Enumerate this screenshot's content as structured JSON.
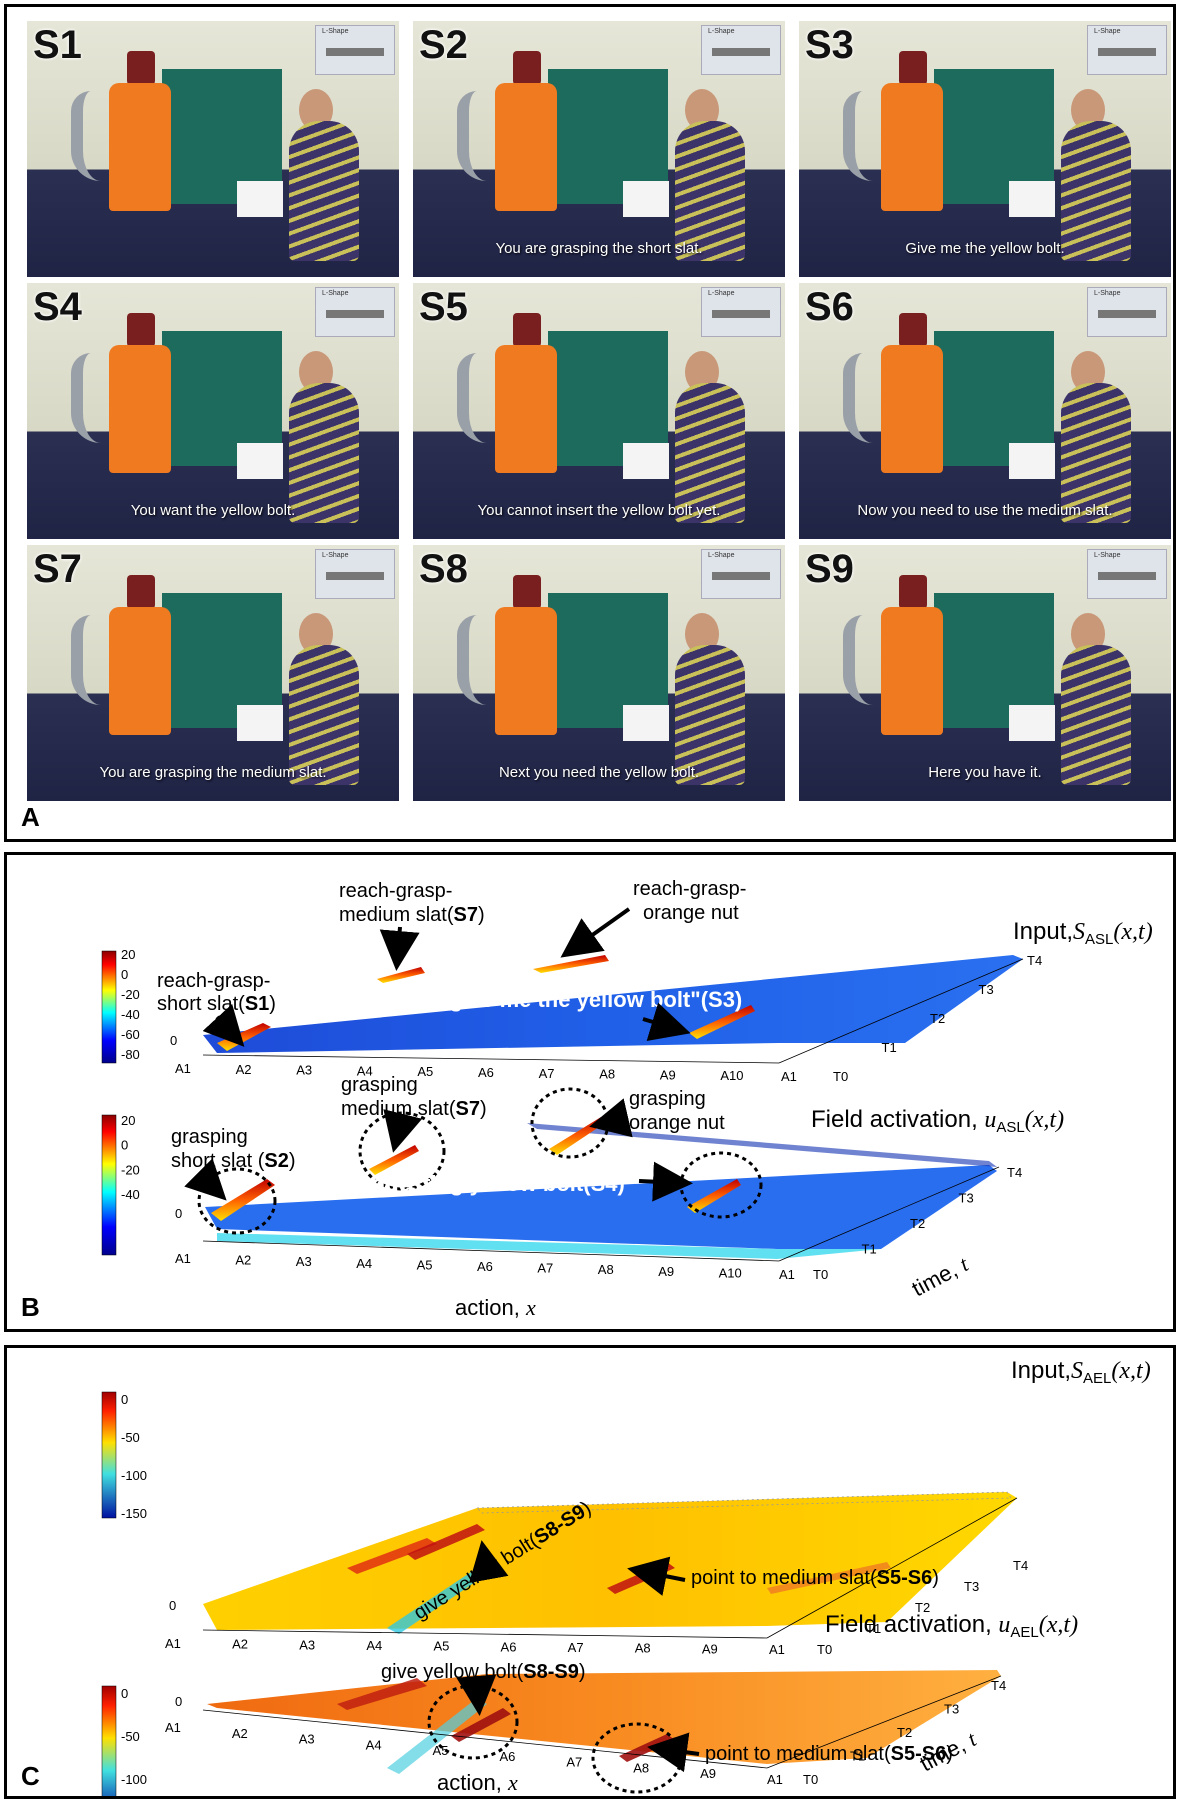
{
  "panel_a": {
    "letter": "A",
    "thumb_title": "L-Shape",
    "frames": [
      {
        "label": "S1",
        "caption": ""
      },
      {
        "label": "S2",
        "caption": "You are grasping the short slat."
      },
      {
        "label": "S3",
        "caption": "Give me the yellow bolt."
      },
      {
        "label": "S4",
        "caption": "You want the yellow bolt."
      },
      {
        "label": "S5",
        "caption": "You cannot insert the yellow bolt yet."
      },
      {
        "label": "S6",
        "caption": "Now you need to use the medium slat."
      },
      {
        "label": "S7",
        "caption": "You are grasping the medium slat."
      },
      {
        "label": "S8",
        "caption": "Next you need the yellow bolt."
      },
      {
        "label": "S9",
        "caption": "Here you have it."
      }
    ]
  },
  "panel_b": {
    "letter": "B",
    "top": {
      "title_prefix": "Input,",
      "title_sym": "S",
      "title_sub": "ASL",
      "title_args": "(x,t)",
      "colorbar_ticks": [
        "20",
        "0",
        "-20",
        "-40",
        "-60",
        "-80"
      ],
      "zero_label": "0",
      "x_ticks": [
        "A1",
        "A2",
        "A3",
        "A4",
        "A5",
        "A6",
        "A7",
        "A8",
        "A9",
        "A10",
        "A1"
      ],
      "t_ticks": [
        "T0",
        "T1",
        "T2",
        "T3",
        "T4"
      ],
      "ann1_l1": "reach-grasp-",
      "ann1_l2": "short slat(",
      "ann1_b": "S1",
      "ann1_end": ")",
      "ann2_l1": "reach-grasp-",
      "ann2_l2": "medium slat(",
      "ann2_b": "S7",
      "ann2_end": ")",
      "ann3_l1": "reach-grasp-",
      "ann3_l2": "orange nut",
      "ann4": "\"give me the yellow bolt\"(S3)"
    },
    "bottom": {
      "title_prefix": "Field activation,",
      "title_sym": "u",
      "title_sub": "ASL",
      "title_args": "(x,t)",
      "colorbar_ticks": [
        "20",
        "0",
        "-20",
        "-40"
      ],
      "zero_label": "0",
      "x_ticks": [
        "A1",
        "A2",
        "A3",
        "A4",
        "A5",
        "A6",
        "A7",
        "A8",
        "A9",
        "A10",
        "A1"
      ],
      "t_ticks": [
        "T0",
        "T1",
        "T2",
        "T3",
        "T4"
      ],
      "xlabel": "action,",
      "xlabel_sym": "x",
      "tlabel": "time,",
      "tlabel_sym": "t",
      "ann1_l1": "grasping",
      "ann1_l2": "short slat (",
      "ann1_b": "S2",
      "ann1_end": ")",
      "ann2_l1": "grasping",
      "ann2_l2": "medium slat(",
      "ann2_b": "S7",
      "ann2_end": ")",
      "ann3_l1": "grasping",
      "ann3_l2": "orange nut",
      "ann4": "requesting yellow bolt(S4)"
    }
  },
  "panel_c": {
    "letter": "C",
    "top": {
      "title_prefix": "Input,",
      "title_sym": "S",
      "title_sub": "AEL",
      "title_args": "(x,t)",
      "colorbar_ticks": [
        "0",
        "-50",
        "-100",
        "-150"
      ],
      "zero_label": "0",
      "x_ticks": [
        "A1",
        "A2",
        "A3",
        "A4",
        "A5",
        "A6",
        "A7",
        "A8",
        "A9",
        "A1"
      ],
      "t_ticks": [
        "T0",
        "T1",
        "T2",
        "T3",
        "T4"
      ],
      "ann1": "give yellow bolt(",
      "ann1_b": "S8-S9",
      "ann1_end": ")",
      "ann2": "point to medium slat(",
      "ann2_b": "S5-S6",
      "ann2_end": ")"
    },
    "bottom": {
      "title_prefix": "Field activation,",
      "title_sym": "u",
      "title_sub": "AEL",
      "title_args": "(x,t)",
      "colorbar_ticks": [
        "0",
        "-50",
        "-100"
      ],
      "zero_label": "0",
      "x_ticks": [
        "A1",
        "A2",
        "A3",
        "A4",
        "A5",
        "A6",
        "A7",
        "A8",
        "A9",
        "A1"
      ],
      "t_ticks": [
        "T0",
        "T1",
        "T2",
        "T3",
        "T4"
      ],
      "xlabel": "action,",
      "xlabel_sym": "x",
      "tlabel": "time,",
      "tlabel_sym": "t",
      "ann1": "give yellow bolt(",
      "ann1_b": "S8-S9",
      "ann1_end": ")",
      "ann2": "point to medium slat(",
      "ann2_b": "S5-S6",
      "ann2_end": ")"
    }
  }
}
